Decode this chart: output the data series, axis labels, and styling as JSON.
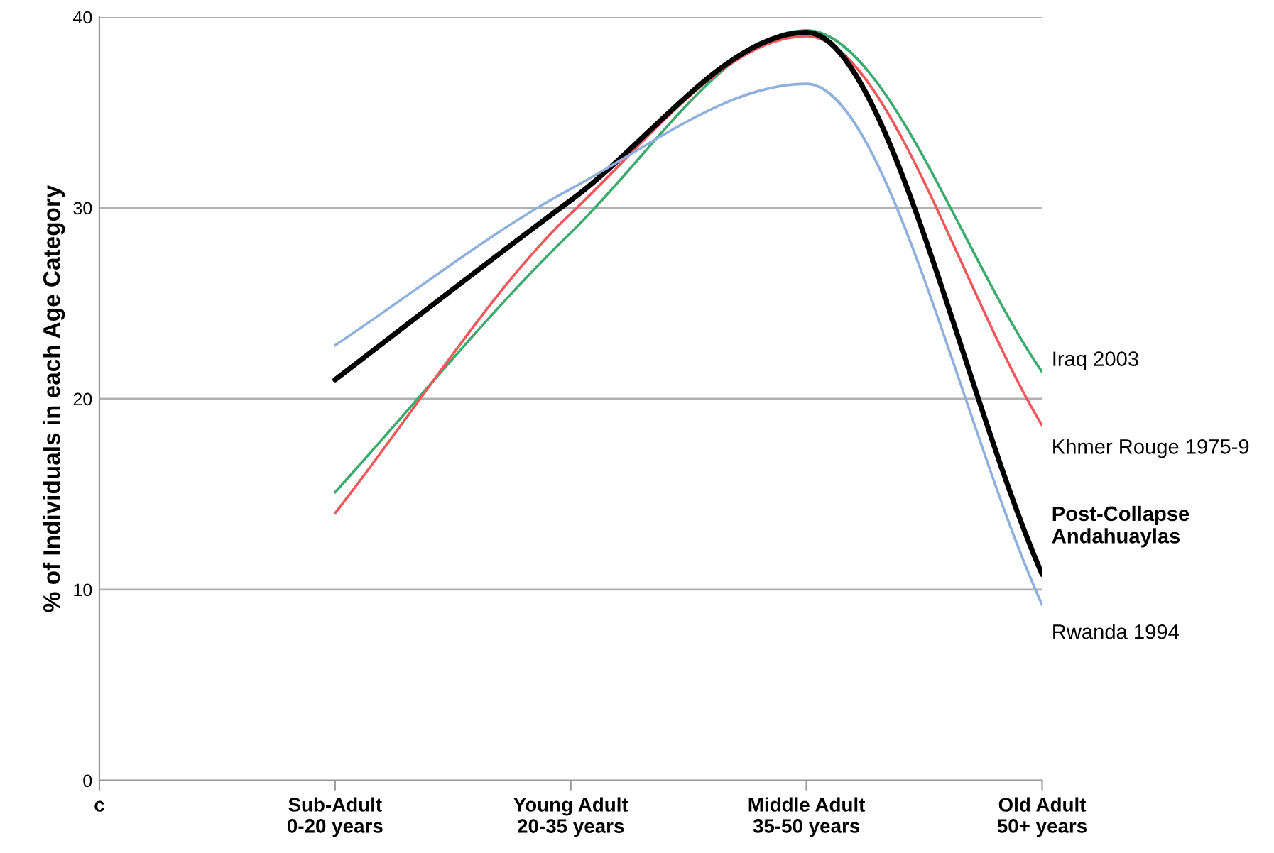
{
  "chart_data": {
    "type": "line",
    "ylabel": "% of Individuals in each Age Category",
    "categories": [
      "c",
      "Sub-Adult\n0-20 years",
      "Young Adult\n20-35 years",
      "Middle Adult\n35-50 years",
      "Old Adult\n50+ years"
    ],
    "series": [
      {
        "name": "Iraq 2003",
        "color": "#3daa6e",
        "values": [
          null,
          15.1,
          28.7,
          39.3,
          21.4
        ]
      },
      {
        "name": "Khmer Rouge 1975-9",
        "color": "#f0585c",
        "values": [
          null,
          14.0,
          29.7,
          39.0,
          18.6
        ]
      },
      {
        "name": "Post-Collapse\nAndahuaylas",
        "color": "#000000",
        "values": [
          null,
          21.0,
          30.4,
          39.2,
          10.8
        ]
      },
      {
        "name": "Rwanda 1994",
        "color": "#8fb0dc",
        "values": [
          null,
          22.8,
          31.0,
          36.5,
          9.2
        ]
      }
    ],
    "ylim": [
      0,
      40
    ],
    "yticks": [
      0,
      10,
      20,
      30,
      40
    ],
    "grid": "y",
    "legend": false,
    "marker": "none",
    "line_style": "solid"
  }
}
